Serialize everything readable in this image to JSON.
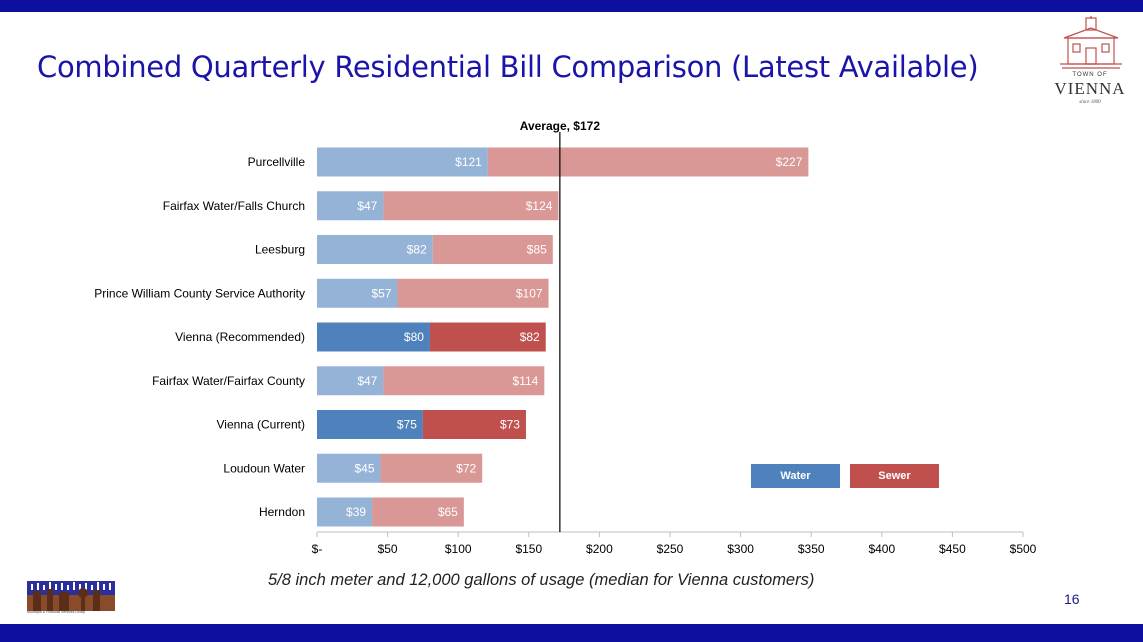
{
  "slide": {
    "title": "Combined Quarterly Residential Bill Comparison (Latest Available)",
    "caption": "5/8 inch meter and 12,000 gallons of usage (median for Vienna customers)",
    "page_number": "16"
  },
  "logo": {
    "town_of": "TOWN OF",
    "name": "VIENNA",
    "since": "since 1890"
  },
  "footer_logo": {
    "text": "Municipal & Financial Services Group"
  },
  "colors": {
    "water_light": "#95b3d7",
    "sewer_light": "#d99795",
    "water_dark": "#4f81bd",
    "sewer_dark": "#c0504d",
    "bar_text": "#ffffff",
    "average_line": "#000000"
  },
  "chart_data": {
    "type": "bar",
    "orientation": "horizontal",
    "stacked": true,
    "categories": [
      "Purcellville",
      "Fairfax Water/Falls Church",
      "Leesburg",
      "Prince William County Service Authority",
      "Vienna (Recommended)",
      "Fairfax Water/Fairfax County",
      "Vienna (Current)",
      "Loudoun Water",
      "Herndon"
    ],
    "highlighted": [
      false,
      false,
      false,
      false,
      true,
      false,
      true,
      false,
      false
    ],
    "series": [
      {
        "name": "Water",
        "values": [
          121,
          47,
          82,
          57,
          80,
          47,
          75,
          45,
          39
        ]
      },
      {
        "name": "Sewer",
        "values": [
          227,
          124,
          85,
          107,
          82,
          114,
          73,
          72,
          65
        ]
      }
    ],
    "value_labels": {
      "Water": [
        "$121",
        "$47",
        "$82",
        "$57",
        "$80",
        "$47",
        "$75",
        "$45",
        "$39"
      ],
      "Sewer": [
        "$227",
        "$124",
        "$85",
        "$107",
        "$82",
        "$114",
        "$73",
        "$72",
        "$65"
      ]
    },
    "xlim": [
      0,
      500
    ],
    "x_ticks": [
      0,
      50,
      100,
      150,
      200,
      250,
      300,
      350,
      400,
      450,
      500
    ],
    "x_tick_labels": [
      "$-",
      "$50",
      "$100",
      "$150",
      "$200",
      "$250",
      "$300",
      "$350",
      "$400",
      "$450",
      "$500"
    ],
    "reference_line": {
      "value": 172,
      "label": "Average, $172"
    },
    "legend": {
      "position": "bottom-right",
      "entries": [
        "Water",
        "Sewer"
      ]
    },
    "grid": false
  }
}
